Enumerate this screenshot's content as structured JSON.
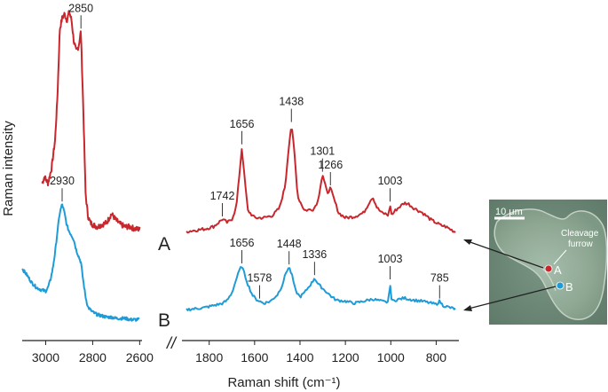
{
  "chart_data": {
    "type": "line",
    "xlabel": "Raman shift (cm⁻¹)",
    "ylabel": "Raman intensity",
    "axis_break_symbol": "//",
    "x_axis_reversed": true,
    "left_panel": {
      "xlim": [
        3100,
        2590
      ],
      "xticks": [
        3000,
        2800,
        2600
      ]
    },
    "right_panel": {
      "xlim": [
        1920,
        700
      ],
      "xticks": [
        1800,
        1600,
        1400,
        1200,
        1000,
        800
      ]
    },
    "colors": {
      "A": "#c8282d",
      "B": "#1f9bd7"
    },
    "series": [
      {
        "name": "A",
        "label": "A",
        "color": "#c8282d",
        "high_wavenumber": {
          "x": [
            3015,
            3005,
            2990,
            2975,
            2960,
            2950,
            2940,
            2930,
            2920,
            2910,
            2900,
            2890,
            2880,
            2870,
            2860,
            2850,
            2840,
            2830,
            2820,
            2810,
            2800,
            2780,
            2760,
            2740,
            2720,
            2700,
            2680,
            2660,
            2640,
            2620,
            2600
          ],
          "y": [
            0.25,
            0.28,
            0.25,
            0.32,
            0.45,
            0.65,
            0.96,
            1.01,
            1.03,
            1.0,
            1.04,
            1.0,
            0.9,
            0.86,
            0.88,
            0.95,
            0.6,
            0.2,
            0.1,
            0.07,
            0.06,
            0.05,
            0.06,
            0.07,
            0.11,
            0.08,
            0.06,
            0.05,
            0.05,
            0.04,
            0.04
          ],
          "peak_labels": [
            {
              "x": 2850,
              "label": "2850"
            }
          ]
        },
        "fingerprint": {
          "x": [
            1900,
            1860,
            1820,
            1780,
            1760,
            1742,
            1720,
            1700,
            1680,
            1665,
            1656,
            1645,
            1630,
            1600,
            1560,
            1520,
            1490,
            1465,
            1450,
            1438,
            1425,
            1410,
            1380,
            1340,
            1320,
            1310,
            1301,
            1290,
            1280,
            1266,
            1250,
            1230,
            1200,
            1160,
            1120,
            1090,
            1080,
            1060,
            1040,
            1020,
            1010,
            1003,
            996,
            980,
            960,
            940,
            920,
            900,
            880,
            860,
            840,
            820,
            800,
            780,
            760,
            740,
            720,
            710
          ],
          "y": [
            0.05,
            0.06,
            0.07,
            0.09,
            0.12,
            0.15,
            0.12,
            0.15,
            0.25,
            0.55,
            0.73,
            0.5,
            0.22,
            0.16,
            0.16,
            0.18,
            0.24,
            0.42,
            0.72,
            0.91,
            0.7,
            0.33,
            0.22,
            0.23,
            0.3,
            0.42,
            0.51,
            0.43,
            0.36,
            0.4,
            0.31,
            0.2,
            0.16,
            0.17,
            0.2,
            0.3,
            0.33,
            0.24,
            0.2,
            0.19,
            0.18,
            0.27,
            0.18,
            0.22,
            0.25,
            0.28,
            0.27,
            0.24,
            0.22,
            0.2,
            0.17,
            0.14,
            0.12,
            0.1,
            0.09,
            0.07,
            0.05,
            0.04
          ],
          "peak_labels": [
            {
              "x": 1742,
              "label": "1742"
            },
            {
              "x": 1656,
              "label": "1656"
            },
            {
              "x": 1438,
              "label": "1438"
            },
            {
              "x": 1301,
              "label": "1301"
            },
            {
              "x": 1266,
              "label": "1266"
            },
            {
              "x": 1003,
              "label": "1003"
            }
          ]
        }
      },
      {
        "name": "B",
        "label": "B",
        "color": "#1f9bd7",
        "high_wavenumber": {
          "x": [
            3100,
            3080,
            3060,
            3040,
            3020,
            3000,
            2990,
            2980,
            2970,
            2960,
            2950,
            2940,
            2930,
            2920,
            2910,
            2900,
            2890,
            2880,
            2870,
            2860,
            2850,
            2840,
            2830,
            2820,
            2800,
            2780,
            2760,
            2740,
            2720,
            2700,
            2680,
            2660,
            2640,
            2620,
            2600
          ],
          "y": [
            0.45,
            0.4,
            0.34,
            0.3,
            0.28,
            0.27,
            0.3,
            0.36,
            0.45,
            0.58,
            0.75,
            0.9,
            0.97,
            0.9,
            0.8,
            0.75,
            0.72,
            0.68,
            0.6,
            0.55,
            0.5,
            0.35,
            0.22,
            0.14,
            0.1,
            0.08,
            0.07,
            0.06,
            0.06,
            0.05,
            0.05,
            0.05,
            0.04,
            0.04,
            0.04
          ],
          "peak_labels": [
            {
              "x": 2930,
              "label": "2930"
            }
          ]
        },
        "fingerprint": {
          "x": [
            1900,
            1860,
            1820,
            1780,
            1740,
            1720,
            1700,
            1680,
            1665,
            1656,
            1645,
            1630,
            1610,
            1595,
            1578,
            1560,
            1530,
            1500,
            1480,
            1460,
            1448,
            1435,
            1420,
            1400,
            1380,
            1360,
            1345,
            1336,
            1320,
            1300,
            1280,
            1260,
            1240,
            1200,
            1160,
            1120,
            1080,
            1040,
            1020,
            1010,
            1003,
            996,
            980,
            940,
            900,
            860,
            820,
            800,
            785,
            770,
            740,
            720,
            710
          ],
          "y": [
            0.04,
            0.05,
            0.06,
            0.08,
            0.1,
            0.13,
            0.2,
            0.33,
            0.42,
            0.45,
            0.38,
            0.28,
            0.18,
            0.14,
            0.12,
            0.1,
            0.12,
            0.18,
            0.26,
            0.4,
            0.44,
            0.36,
            0.22,
            0.16,
            0.2,
            0.26,
            0.3,
            0.34,
            0.28,
            0.24,
            0.2,
            0.16,
            0.13,
            0.12,
            0.1,
            0.12,
            0.14,
            0.12,
            0.11,
            0.12,
            0.3,
            0.12,
            0.13,
            0.15,
            0.13,
            0.12,
            0.1,
            0.09,
            0.12,
            0.08,
            0.06,
            0.05,
            0.04
          ],
          "peak_labels": [
            {
              "x": 1656,
              "label": "1656"
            },
            {
              "x": 1578,
              "label": "1578"
            },
            {
              "x": 1448,
              "label": "1448"
            },
            {
              "x": 1336,
              "label": "1336"
            },
            {
              "x": 1003,
              "label": "1003"
            },
            {
              "x": 785,
              "label": "785"
            }
          ]
        }
      }
    ]
  },
  "inset": {
    "scale_bar_label": "10 μm",
    "annotation": "Cleavage furrow",
    "annotation_lines": [
      "Cleavage",
      "furrow"
    ],
    "point_labels": [
      "A",
      "B"
    ],
    "background_color": "#6f8a78"
  }
}
